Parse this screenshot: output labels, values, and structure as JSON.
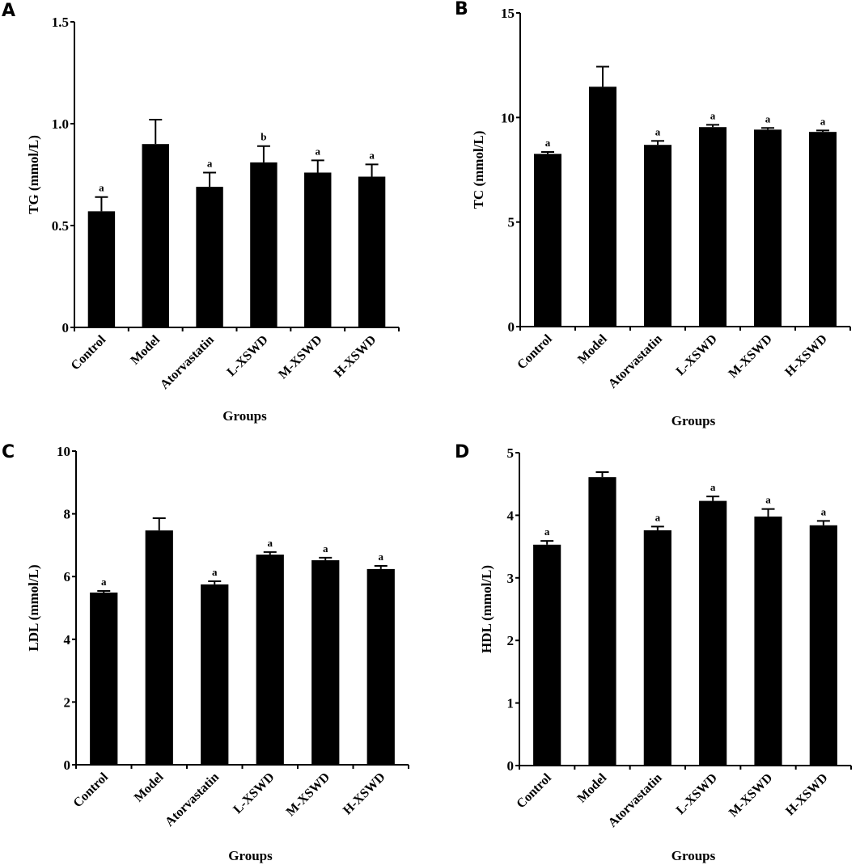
{
  "figure": {
    "panels": [
      "A",
      "B",
      "C",
      "D"
    ]
  },
  "chart_data": [
    {
      "panel": "A",
      "type": "bar",
      "title": "",
      "xlabel": "Groups",
      "ylabel": "TG (mmol/L)",
      "categories": [
        "Control",
        "Model",
        "Atorvastatin",
        "L-XSWD",
        "M-XSWD",
        "H-XSWD"
      ],
      "values": [
        0.57,
        0.9,
        0.69,
        0.81,
        0.76,
        0.74
      ],
      "error_upper": [
        0.64,
        1.02,
        0.76,
        0.89,
        0.82,
        0.8
      ],
      "significance": [
        "a",
        "",
        "a",
        "b",
        "a",
        "a"
      ],
      "ylim": [
        0,
        1.5
      ],
      "yticks": [
        0,
        0.5,
        1.0,
        1.5
      ],
      "ytick_labels": [
        "0",
        "0.5",
        "1.0",
        "1.5"
      ],
      "grid": false,
      "bar_color": "#000000"
    },
    {
      "panel": "B",
      "type": "bar",
      "title": "",
      "xlabel": "Groups",
      "ylabel": "TC (mmol/L)",
      "categories": [
        "Control",
        "Model",
        "Atorvastatin",
        "L-XSWD",
        "M-XSWD",
        "H-XSWD"
      ],
      "values": [
        8.26,
        11.47,
        8.69,
        9.54,
        9.42,
        9.31
      ],
      "error_upper": [
        8.35,
        12.43,
        8.88,
        9.65,
        9.5,
        9.38
      ],
      "significance": [
        "a",
        "",
        "a",
        "a",
        "a",
        "a"
      ],
      "ylim": [
        0,
        15
      ],
      "yticks": [
        0,
        5,
        10,
        15
      ],
      "ytick_labels": [
        "0",
        "5",
        "10",
        "15"
      ],
      "grid": false,
      "bar_color": "#000000"
    },
    {
      "panel": "C",
      "type": "bar",
      "title": "",
      "xlabel": "Groups",
      "ylabel": "LDL (mmol/L)",
      "categories": [
        "Control",
        "Model",
        "Atorvastatin",
        "L-XSWD",
        "M-XSWD",
        "H-XSWD"
      ],
      "values": [
        5.49,
        7.47,
        5.75,
        6.7,
        6.52,
        6.24
      ],
      "error_upper": [
        5.54,
        7.86,
        5.85,
        6.78,
        6.6,
        6.34
      ],
      "significance": [
        "a",
        "",
        "a",
        "a",
        "a",
        "a"
      ],
      "ylim": [
        0,
        10
      ],
      "yticks": [
        0,
        2,
        4,
        6,
        8,
        10
      ],
      "ytick_labels": [
        "0",
        "2",
        "4",
        "6",
        "8",
        "10"
      ],
      "grid": false,
      "bar_color": "#000000"
    },
    {
      "panel": "D",
      "type": "bar",
      "title": "",
      "xlabel": "Groups",
      "ylabel": "HDL (mmol/L)",
      "categories": [
        "Control",
        "Model",
        "Atorvastatin",
        "L-XSWD",
        "M-XSWD",
        "H-XSWD"
      ],
      "values": [
        3.53,
        4.61,
        3.76,
        4.23,
        3.98,
        3.84
      ],
      "error_upper": [
        3.59,
        4.69,
        3.82,
        4.3,
        4.1,
        3.91
      ],
      "significance": [
        "a",
        "",
        "a",
        "a",
        "a",
        "a"
      ],
      "ylim": [
        0,
        5
      ],
      "yticks": [
        0,
        1,
        2,
        3,
        4,
        5
      ],
      "ytick_labels": [
        "0",
        "1",
        "2",
        "3",
        "4",
        "5"
      ],
      "grid": false,
      "bar_color": "#000000"
    }
  ]
}
